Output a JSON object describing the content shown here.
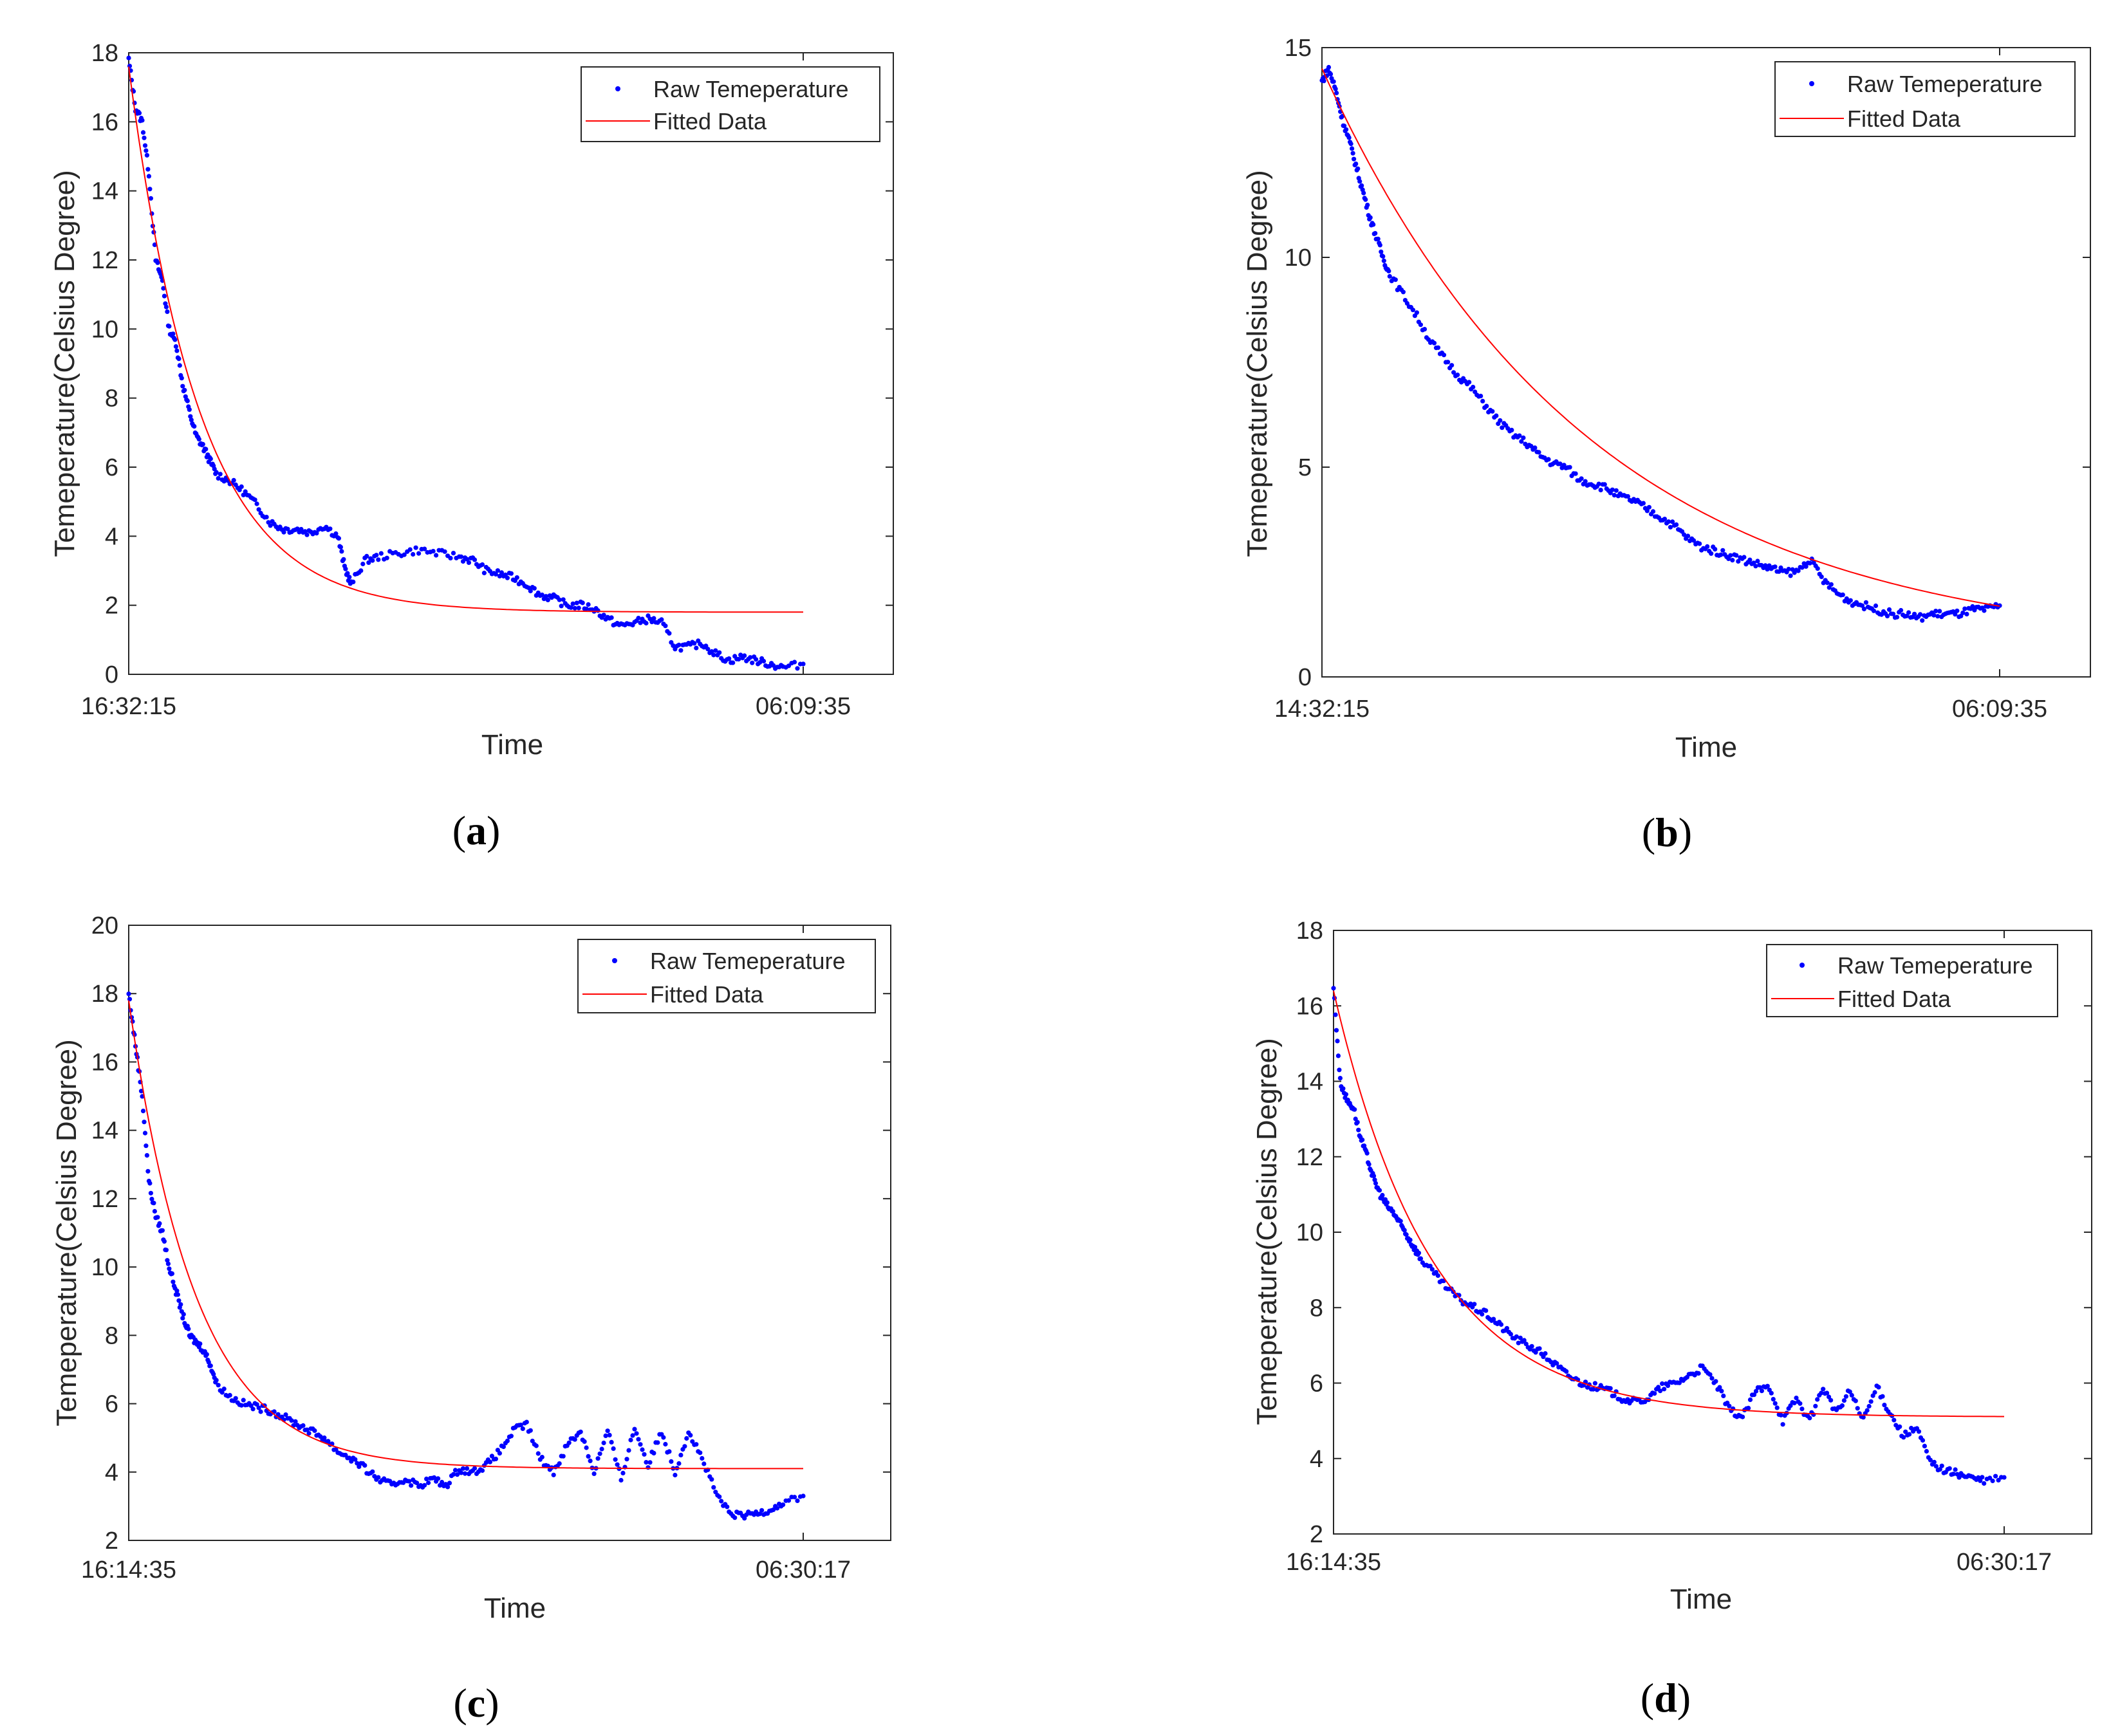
{
  "figure": {
    "panels": [
      "(a)",
      "(b)",
      "(c)",
      "(d)"
    ]
  },
  "colors": {
    "raw": "#0000ff",
    "fit": "#ff0000",
    "axis": "#262626"
  },
  "chart_data": [
    {
      "type": "scatter",
      "panel_id": "a",
      "panel_label": "a",
      "xlabel": "Time",
      "ylabel": "Temeperature(Celsius Degree)",
      "ylim": [
        0,
        18
      ],
      "yticks": [
        0,
        2,
        4,
        6,
        8,
        10,
        12,
        14,
        16,
        18
      ],
      "x_tick_labels": [
        "16:32:15",
        "06:09:35"
      ],
      "xlim_fraction": [
        0,
        1.13
      ],
      "legend": {
        "placement": "top-right",
        "entries": [
          "Raw Temeperature",
          "Fitted Data"
        ]
      },
      "raw_points": [
        [
          0.0,
          17.8
        ],
        [
          0.01,
          16.4
        ],
        [
          0.02,
          16.0
        ],
        [
          0.03,
          14.5
        ],
        [
          0.04,
          12.0
        ],
        [
          0.05,
          11.4
        ],
        [
          0.06,
          10.0
        ],
        [
          0.07,
          9.6
        ],
        [
          0.08,
          8.4
        ],
        [
          0.09,
          7.6
        ],
        [
          0.1,
          6.9
        ],
        [
          0.11,
          6.6
        ],
        [
          0.12,
          6.2
        ],
        [
          0.13,
          5.8
        ],
        [
          0.15,
          5.6
        ],
        [
          0.17,
          5.3
        ],
        [
          0.19,
          4.9
        ],
        [
          0.21,
          4.4
        ],
        [
          0.23,
          4.2
        ],
        [
          0.25,
          4.2
        ],
        [
          0.27,
          4.1
        ],
        [
          0.29,
          4.3
        ],
        [
          0.31,
          4.0
        ],
        [
          0.32,
          3.1
        ],
        [
          0.33,
          2.6
        ],
        [
          0.35,
          3.3
        ],
        [
          0.37,
          3.4
        ],
        [
          0.4,
          3.5
        ],
        [
          0.43,
          3.6
        ],
        [
          0.46,
          3.5
        ],
        [
          0.49,
          3.4
        ],
        [
          0.51,
          3.3
        ],
        [
          0.53,
          3.0
        ],
        [
          0.55,
          2.9
        ],
        [
          0.57,
          2.8
        ],
        [
          0.59,
          2.6
        ],
        [
          0.61,
          2.3
        ],
        [
          0.63,
          2.2
        ],
        [
          0.65,
          2.0
        ],
        [
          0.67,
          2.0
        ],
        [
          0.69,
          1.9
        ],
        [
          0.71,
          1.6
        ],
        [
          0.73,
          1.4
        ],
        [
          0.75,
          1.5
        ],
        [
          0.77,
          1.6
        ],
        [
          0.79,
          1.5
        ],
        [
          0.81,
          0.8
        ],
        [
          0.83,
          0.8
        ],
        [
          0.85,
          0.9
        ],
        [
          0.87,
          0.6
        ],
        [
          0.89,
          0.4
        ],
        [
          0.91,
          0.5
        ],
        [
          0.93,
          0.4
        ],
        [
          0.95,
          0.3
        ],
        [
          0.97,
          0.2
        ],
        [
          1.0,
          0.3
        ]
      ],
      "fit": {
        "start": 17.6,
        "asymptote": 1.8,
        "rate": 9.5
      }
    },
    {
      "type": "scatter",
      "panel_id": "b",
      "panel_label": "b",
      "xlabel": "Time",
      "ylabel": "Temeperature(Celsius Degree)",
      "ylim": [
        0,
        15
      ],
      "yticks": [
        0,
        5,
        10,
        15
      ],
      "x_tick_labels": [
        "14:32:15",
        "06:09:35"
      ],
      "xlim_fraction": [
        0,
        1.13
      ],
      "legend": {
        "placement": "top-right",
        "entries": [
          "Raw Temeperature",
          "Fitted Data"
        ]
      },
      "raw_points": [
        [
          0.0,
          14.2
        ],
        [
          0.01,
          14.5
        ],
        [
          0.02,
          14.0
        ],
        [
          0.03,
          13.3
        ],
        [
          0.04,
          12.8
        ],
        [
          0.05,
          12.2
        ],
        [
          0.06,
          11.6
        ],
        [
          0.07,
          11.0
        ],
        [
          0.08,
          10.5
        ],
        [
          0.09,
          10.0
        ],
        [
          0.1,
          9.6
        ],
        [
          0.12,
          9.1
        ],
        [
          0.14,
          8.6
        ],
        [
          0.16,
          8.0
        ],
        [
          0.18,
          7.6
        ],
        [
          0.2,
          7.2
        ],
        [
          0.22,
          6.9
        ],
        [
          0.24,
          6.5
        ],
        [
          0.26,
          6.1
        ],
        [
          0.28,
          5.8
        ],
        [
          0.3,
          5.6
        ],
        [
          0.32,
          5.3
        ],
        [
          0.34,
          5.1
        ],
        [
          0.36,
          5.0
        ],
        [
          0.38,
          4.7
        ],
        [
          0.4,
          4.6
        ],
        [
          0.42,
          4.5
        ],
        [
          0.44,
          4.3
        ],
        [
          0.46,
          4.2
        ],
        [
          0.48,
          4.0
        ],
        [
          0.5,
          3.8
        ],
        [
          0.52,
          3.6
        ],
        [
          0.54,
          3.3
        ],
        [
          0.56,
          3.1
        ],
        [
          0.58,
          3.0
        ],
        [
          0.6,
          2.9
        ],
        [
          0.62,
          2.8
        ],
        [
          0.64,
          2.7
        ],
        [
          0.66,
          2.6
        ],
        [
          0.68,
          2.5
        ],
        [
          0.7,
          2.5
        ],
        [
          0.72,
          2.8
        ],
        [
          0.74,
          2.3
        ],
        [
          0.76,
          2.0
        ],
        [
          0.78,
          1.8
        ],
        [
          0.8,
          1.7
        ],
        [
          0.82,
          1.6
        ],
        [
          0.84,
          1.5
        ],
        [
          0.86,
          1.5
        ],
        [
          0.88,
          1.4
        ],
        [
          0.9,
          1.5
        ],
        [
          0.92,
          1.5
        ],
        [
          0.94,
          1.5
        ],
        [
          0.96,
          1.6
        ],
        [
          0.98,
          1.6
        ],
        [
          1.0,
          1.7
        ]
      ],
      "fit": {
        "start": 14.5,
        "asymptote": 0.6,
        "rate": 2.55
      }
    },
    {
      "type": "scatter",
      "panel_id": "c",
      "panel_label": "c",
      "xlabel": "Time",
      "ylabel": "Temeperature(Celsius Degree)",
      "ylim": [
        2,
        20
      ],
      "yticks": [
        2,
        4,
        6,
        8,
        10,
        12,
        14,
        16,
        18,
        20
      ],
      "x_tick_labels": [
        "16:14:35",
        "06:30:17"
      ],
      "xlim_fraction": [
        0,
        1.13
      ],
      "legend": {
        "placement": "top-right",
        "entries": [
          "Raw Temeperature",
          "Fitted Data"
        ]
      },
      "raw_points": [
        [
          0.0,
          18.0
        ],
        [
          0.01,
          16.5
        ],
        [
          0.02,
          15.0
        ],
        [
          0.03,
          12.5
        ],
        [
          0.04,
          11.5
        ],
        [
          0.05,
          11.0
        ],
        [
          0.06,
          10.0
        ],
        [
          0.07,
          9.3
        ],
        [
          0.08,
          8.6
        ],
        [
          0.09,
          8.0
        ],
        [
          0.1,
          7.8
        ],
        [
          0.11,
          7.6
        ],
        [
          0.12,
          7.2
        ],
        [
          0.13,
          6.6
        ],
        [
          0.15,
          6.2
        ],
        [
          0.17,
          6.0
        ],
        [
          0.19,
          5.9
        ],
        [
          0.21,
          5.8
        ],
        [
          0.23,
          5.6
        ],
        [
          0.25,
          5.4
        ],
        [
          0.27,
          5.2
        ],
        [
          0.29,
          5.0
        ],
        [
          0.31,
          4.6
        ],
        [
          0.33,
          4.4
        ],
        [
          0.35,
          4.1
        ],
        [
          0.37,
          3.8
        ],
        [
          0.39,
          3.6
        ],
        [
          0.41,
          3.8
        ],
        [
          0.43,
          3.6
        ],
        [
          0.45,
          3.8
        ],
        [
          0.47,
          3.6
        ],
        [
          0.49,
          4.1
        ],
        [
          0.51,
          4.0
        ],
        [
          0.53,
          4.2
        ],
        [
          0.55,
          4.6
        ],
        [
          0.57,
          5.2
        ],
        [
          0.59,
          5.4
        ],
        [
          0.61,
          4.4
        ],
        [
          0.63,
          4.0
        ],
        [
          0.65,
          4.8
        ],
        [
          0.67,
          5.2
        ],
        [
          0.69,
          4.0
        ],
        [
          0.71,
          5.2
        ],
        [
          0.73,
          3.8
        ],
        [
          0.75,
          5.3
        ],
        [
          0.77,
          4.2
        ],
        [
          0.79,
          5.2
        ],
        [
          0.81,
          4.0
        ],
        [
          0.83,
          5.2
        ],
        [
          0.85,
          4.4
        ],
        [
          0.87,
          3.4
        ],
        [
          0.89,
          2.8
        ],
        [
          0.91,
          2.7
        ],
        [
          0.93,
          2.8
        ],
        [
          0.95,
          2.9
        ],
        [
          0.97,
          3.1
        ],
        [
          1.0,
          3.3
        ]
      ],
      "fit": {
        "start": 17.8,
        "asymptote": 4.1,
        "rate": 10.0
      }
    },
    {
      "type": "scatter",
      "panel_id": "d",
      "panel_label": "d",
      "xlabel": "Time",
      "ylabel": "Temeperature(Celsius Degree)",
      "ylim": [
        2,
        18
      ],
      "yticks": [
        2,
        4,
        6,
        8,
        10,
        12,
        14,
        16,
        18
      ],
      "x_tick_labels": [
        "16:14:35",
        "06:30:17"
      ],
      "xlim_fraction": [
        0,
        1.13
      ],
      "legend": {
        "placement": "top-right",
        "entries": [
          "Raw Temeperature",
          "Fitted Data"
        ]
      },
      "raw_points": [
        [
          0.0,
          16.5
        ],
        [
          0.01,
          14.0
        ],
        [
          0.02,
          13.5
        ],
        [
          0.03,
          13.3
        ],
        [
          0.04,
          12.5
        ],
        [
          0.05,
          12.0
        ],
        [
          0.06,
          11.4
        ],
        [
          0.07,
          11.0
        ],
        [
          0.08,
          10.7
        ],
        [
          0.09,
          10.5
        ],
        [
          0.1,
          10.2
        ],
        [
          0.11,
          9.9
        ],
        [
          0.12,
          9.6
        ],
        [
          0.13,
          9.3
        ],
        [
          0.15,
          8.9
        ],
        [
          0.17,
          8.5
        ],
        [
          0.19,
          8.2
        ],
        [
          0.21,
          8.0
        ],
        [
          0.23,
          7.8
        ],
        [
          0.25,
          7.5
        ],
        [
          0.27,
          7.2
        ],
        [
          0.29,
          7.0
        ],
        [
          0.31,
          6.8
        ],
        [
          0.33,
          6.5
        ],
        [
          0.35,
          6.2
        ],
        [
          0.37,
          6.0
        ],
        [
          0.39,
          5.9
        ],
        [
          0.41,
          5.8
        ],
        [
          0.43,
          5.6
        ],
        [
          0.45,
          5.5
        ],
        [
          0.47,
          5.6
        ],
        [
          0.49,
          5.9
        ],
        [
          0.51,
          6.0
        ],
        [
          0.53,
          6.2
        ],
        [
          0.55,
          6.4
        ],
        [
          0.57,
          6.0
        ],
        [
          0.59,
          5.3
        ],
        [
          0.61,
          5.1
        ],
        [
          0.63,
          5.8
        ],
        [
          0.65,
          5.9
        ],
        [
          0.67,
          5.0
        ],
        [
          0.69,
          5.6
        ],
        [
          0.71,
          5.0
        ],
        [
          0.73,
          5.9
        ],
        [
          0.75,
          5.2
        ],
        [
          0.77,
          5.8
        ],
        [
          0.79,
          5.0
        ],
        [
          0.81,
          5.9
        ],
        [
          0.83,
          5.2
        ],
        [
          0.85,
          4.6
        ],
        [
          0.87,
          4.8
        ],
        [
          0.89,
          3.9
        ],
        [
          0.91,
          3.7
        ],
        [
          0.93,
          3.6
        ],
        [
          0.95,
          3.5
        ],
        [
          0.97,
          3.4
        ],
        [
          1.0,
          3.5
        ]
      ],
      "fit": {
        "start": 16.4,
        "asymptote": 5.1,
        "rate": 6.8
      }
    }
  ]
}
